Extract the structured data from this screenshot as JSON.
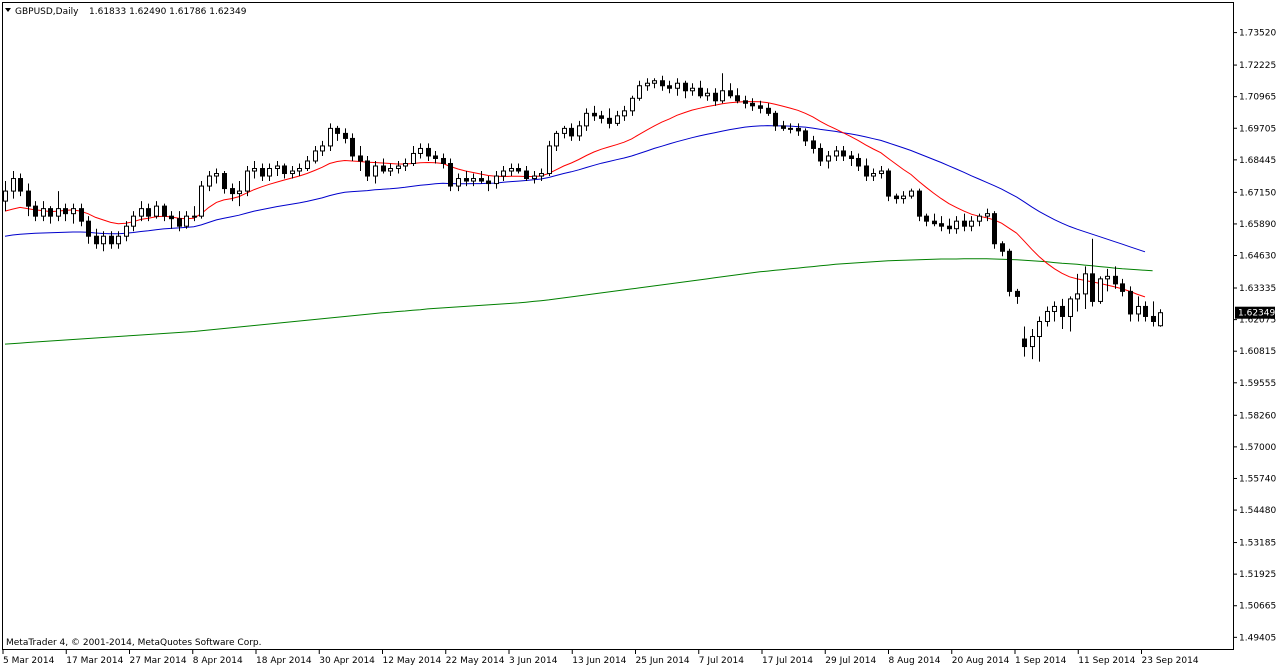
{
  "header": {
    "symbol_label": "GBPUSD,Daily",
    "ohlc_label": "1.61833 1.62490 1.61786 1.62349"
  },
  "footer": {
    "copyright": "MetaTrader 4, © 2001-2014, MetaQuotes Software Corp."
  },
  "chart_data": {
    "type": "candlestick",
    "ylim": [
      1.489,
      1.747
    ],
    "y_ticks": [
      "1.73520",
      "1.72225",
      "1.70965",
      "1.69705",
      "1.68445",
      "1.67150",
      "1.65890",
      "1.64630",
      "1.63335",
      "1.62075",
      "1.60815",
      "1.59555",
      "1.58260",
      "1.57000",
      "1.55740",
      "1.54480",
      "1.53185",
      "1.51925",
      "1.50665",
      "1.49405"
    ],
    "x_labels": [
      "5 Mar 2014",
      "17 Mar 2014",
      "27 Mar 2014",
      "8 Apr 2014",
      "18 Apr 2014",
      "30 Apr 2014",
      "12 May 2014",
      "22 May 2014",
      "3 Jun 2014",
      "13 Jun 2014",
      "25 Jun 2014",
      "7 Jul 2014",
      "17 Jul 2014",
      "29 Jul 2014",
      "8 Aug 2014",
      "20 Aug 2014",
      "1 Sep 2014",
      "11 Sep 2014",
      "23 Sep 2014"
    ],
    "current_price": "1.62349",
    "colors": {
      "ma_fast": "#ff0000",
      "ma_mid": "#0000cc",
      "ma_slow": "#008000",
      "candle_bull": "#ffffff",
      "candle_bear": "#000000"
    },
    "candles": [
      [
        1.668,
        1.676,
        1.664,
        1.672
      ],
      [
        1.672,
        1.68,
        1.669,
        1.677
      ],
      [
        1.677,
        1.679,
        1.67,
        1.672
      ],
      [
        1.672,
        1.675,
        1.662,
        1.666
      ],
      [
        1.666,
        1.668,
        1.66,
        1.662
      ],
      [
        1.662,
        1.668,
        1.66,
        1.665
      ],
      [
        1.665,
        1.666,
        1.659,
        1.662
      ],
      [
        1.662,
        1.672,
        1.66,
        1.665
      ],
      [
        1.665,
        1.667,
        1.66,
        1.663
      ],
      [
        1.663,
        1.667,
        1.659,
        1.665
      ],
      [
        1.665,
        1.667,
        1.658,
        1.66
      ],
      [
        1.66,
        1.662,
        1.651,
        1.654
      ],
      [
        1.654,
        1.657,
        1.649,
        1.651
      ],
      [
        1.651,
        1.656,
        1.648,
        1.654
      ],
      [
        1.654,
        1.656,
        1.649,
        1.651
      ],
      [
        1.651,
        1.656,
        1.649,
        1.654
      ],
      [
        1.654,
        1.66,
        1.652,
        1.658
      ],
      [
        1.658,
        1.664,
        1.656,
        1.662
      ],
      [
        1.662,
        1.668,
        1.66,
        1.665
      ],
      [
        1.665,
        1.667,
        1.66,
        1.662
      ],
      [
        1.662,
        1.668,
        1.661,
        1.666
      ],
      [
        1.666,
        1.667,
        1.66,
        1.662
      ],
      [
        1.662,
        1.664,
        1.657,
        1.661
      ],
      [
        1.661,
        1.664,
        1.656,
        1.658
      ],
      [
        1.658,
        1.664,
        1.657,
        1.662
      ],
      [
        1.662,
        1.666,
        1.66,
        1.662
      ],
      [
        1.662,
        1.676,
        1.661,
        1.674
      ],
      [
        1.674,
        1.68,
        1.672,
        1.678
      ],
      [
        1.678,
        1.681,
        1.675,
        1.679
      ],
      [
        1.679,
        1.68,
        1.671,
        1.673
      ],
      [
        1.673,
        1.675,
        1.668,
        1.671
      ],
      [
        1.671,
        1.676,
        1.666,
        1.672
      ],
      [
        1.672,
        1.682,
        1.67,
        1.68
      ],
      [
        1.68,
        1.684,
        1.677,
        1.681
      ],
      [
        1.681,
        1.683,
        1.676,
        1.678
      ],
      [
        1.678,
        1.683,
        1.676,
        1.681
      ],
      [
        1.681,
        1.684,
        1.678,
        1.682
      ],
      [
        1.682,
        1.683,
        1.677,
        1.679
      ],
      [
        1.679,
        1.682,
        1.677,
        1.68
      ],
      [
        1.68,
        1.683,
        1.678,
        1.681
      ],
      [
        1.681,
        1.686,
        1.68,
        1.684
      ],
      [
        1.684,
        1.69,
        1.683,
        1.688
      ],
      [
        1.688,
        1.692,
        1.686,
        1.69
      ],
      [
        1.69,
        1.699,
        1.688,
        1.697
      ],
      [
        1.697,
        1.698,
        1.692,
        1.695
      ],
      [
        1.695,
        1.697,
        1.691,
        1.693
      ],
      [
        1.693,
        1.695,
        1.684,
        1.686
      ],
      [
        1.686,
        1.69,
        1.68,
        1.684
      ],
      [
        1.684,
        1.686,
        1.676,
        1.678
      ],
      [
        1.678,
        1.684,
        1.675,
        1.682
      ],
      [
        1.682,
        1.685,
        1.679,
        1.68
      ],
      [
        1.68,
        1.683,
        1.678,
        1.681
      ],
      [
        1.681,
        1.684,
        1.679,
        1.682
      ],
      [
        1.682,
        1.685,
        1.68,
        1.683
      ],
      [
        1.683,
        1.69,
        1.682,
        1.687
      ],
      [
        1.687,
        1.691,
        1.685,
        1.689
      ],
      [
        1.689,
        1.691,
        1.684,
        1.686
      ],
      [
        1.686,
        1.688,
        1.683,
        1.685
      ],
      [
        1.685,
        1.687,
        1.681,
        1.683
      ],
      [
        1.683,
        1.685,
        1.672,
        1.674
      ],
      [
        1.674,
        1.679,
        1.672,
        1.677
      ],
      [
        1.677,
        1.68,
        1.674,
        1.676
      ],
      [
        1.676,
        1.679,
        1.674,
        1.677
      ],
      [
        1.677,
        1.68,
        1.675,
        1.676
      ],
      [
        1.676,
        1.678,
        1.672,
        1.675
      ],
      [
        1.675,
        1.68,
        1.673,
        1.678
      ],
      [
        1.678,
        1.682,
        1.676,
        1.68
      ],
      [
        1.68,
        1.683,
        1.678,
        1.681
      ],
      [
        1.681,
        1.683,
        1.679,
        1.68
      ],
      [
        1.68,
        1.682,
        1.676,
        1.677
      ],
      [
        1.677,
        1.68,
        1.675,
        1.678
      ],
      [
        1.678,
        1.681,
        1.676,
        1.679
      ],
      [
        1.679,
        1.692,
        1.678,
        1.69
      ],
      [
        1.69,
        1.696,
        1.688,
        1.695
      ],
      [
        1.695,
        1.698,
        1.693,
        1.697
      ],
      [
        1.697,
        1.699,
        1.692,
        1.694
      ],
      [
        1.694,
        1.7,
        1.692,
        1.698
      ],
      [
        1.698,
        1.705,
        1.696,
        1.703
      ],
      [
        1.703,
        1.706,
        1.7,
        1.702
      ],
      [
        1.702,
        1.704,
        1.699,
        1.701
      ],
      [
        1.701,
        1.705,
        1.697,
        1.699
      ],
      [
        1.699,
        1.704,
        1.698,
        1.702
      ],
      [
        1.702,
        1.706,
        1.7,
        1.704
      ],
      [
        1.704,
        1.71,
        1.702,
        1.709
      ],
      [
        1.709,
        1.716,
        1.708,
        1.714
      ],
      [
        1.714,
        1.717,
        1.712,
        1.715
      ],
      [
        1.715,
        1.717,
        1.713,
        1.716
      ],
      [
        1.716,
        1.718,
        1.712,
        1.714
      ],
      [
        1.714,
        1.716,
        1.711,
        1.713
      ],
      [
        1.713,
        1.717,
        1.71,
        1.715
      ],
      [
        1.715,
        1.716,
        1.709,
        1.712
      ],
      [
        1.712,
        1.715,
        1.71,
        1.713
      ],
      [
        1.713,
        1.716,
        1.709,
        1.71
      ],
      [
        1.71,
        1.713,
        1.708,
        1.711
      ],
      [
        1.711,
        1.713,
        1.706,
        1.708
      ],
      [
        1.708,
        1.719,
        1.707,
        1.712
      ],
      [
        1.712,
        1.715,
        1.709,
        1.71
      ],
      [
        1.71,
        1.713,
        1.707,
        1.708
      ],
      [
        1.708,
        1.71,
        1.705,
        1.707
      ],
      [
        1.707,
        1.709,
        1.704,
        1.706
      ],
      [
        1.706,
        1.708,
        1.703,
        1.705
      ],
      [
        1.705,
        1.707,
        1.702,
        1.703
      ],
      [
        1.703,
        1.704,
        1.696,
        1.698
      ],
      [
        1.698,
        1.7,
        1.696,
        1.697
      ],
      [
        1.697,
        1.699,
        1.695,
        1.697
      ],
      [
        1.697,
        1.699,
        1.694,
        1.696
      ],
      [
        1.696,
        1.697,
        1.69,
        1.692
      ],
      [
        1.692,
        1.694,
        1.687,
        1.689
      ],
      [
        1.689,
        1.691,
        1.682,
        1.684
      ],
      [
        1.684,
        1.688,
        1.681,
        1.686
      ],
      [
        1.686,
        1.69,
        1.684,
        1.688
      ],
      [
        1.688,
        1.69,
        1.684,
        1.686
      ],
      [
        1.686,
        1.688,
        1.682,
        1.685
      ],
      [
        1.685,
        1.687,
        1.68,
        1.682
      ],
      [
        1.682,
        1.685,
        1.676,
        1.678
      ],
      [
        1.678,
        1.681,
        1.676,
        1.679
      ],
      [
        1.679,
        1.682,
        1.677,
        1.68
      ],
      [
        1.68,
        1.681,
        1.668,
        1.67
      ],
      [
        1.67,
        1.671,
        1.667,
        1.669
      ],
      [
        1.669,
        1.672,
        1.667,
        1.67
      ],
      [
        1.67,
        1.673,
        1.669,
        1.672
      ],
      [
        1.672,
        1.673,
        1.66,
        1.662
      ],
      [
        1.662,
        1.663,
        1.658,
        1.66
      ],
      [
        1.66,
        1.663,
        1.658,
        1.659
      ],
      [
        1.659,
        1.662,
        1.656,
        1.658
      ],
      [
        1.658,
        1.661,
        1.655,
        1.657
      ],
      [
        1.657,
        1.662,
        1.655,
        1.66
      ],
      [
        1.66,
        1.663,
        1.656,
        1.658
      ],
      [
        1.658,
        1.662,
        1.656,
        1.66
      ],
      [
        1.66,
        1.663,
        1.658,
        1.662
      ],
      [
        1.662,
        1.665,
        1.66,
        1.663
      ],
      [
        1.663,
        1.664,
        1.649,
        1.651
      ],
      [
        1.651,
        1.652,
        1.646,
        1.648
      ],
      [
        1.648,
        1.649,
        1.63,
        1.632
      ],
      [
        1.632,
        1.633,
        1.627,
        1.63
      ],
      [
        1.613,
        1.618,
        1.606,
        1.61
      ],
      [
        1.61,
        1.617,
        1.605,
        1.614
      ],
      [
        1.614,
        1.622,
        1.604,
        1.62
      ],
      [
        1.62,
        1.626,
        1.618,
        1.624
      ],
      [
        1.624,
        1.628,
        1.62,
        1.626
      ],
      [
        1.626,
        1.629,
        1.617,
        1.622
      ],
      [
        1.622,
        1.63,
        1.616,
        1.629
      ],
      [
        1.629,
        1.639,
        1.624,
        1.631
      ],
      [
        1.631,
        1.642,
        1.625,
        1.639
      ],
      [
        1.639,
        1.653,
        1.626,
        1.628
      ],
      [
        1.628,
        1.638,
        1.627,
        1.637
      ],
      [
        1.637,
        1.641,
        1.632,
        1.638
      ],
      [
        1.638,
        1.642,
        1.633,
        1.635
      ],
      [
        1.635,
        1.637,
        1.63,
        1.632
      ],
      [
        1.632,
        1.634,
        1.62,
        1.623
      ],
      [
        1.623,
        1.63,
        1.62,
        1.626
      ],
      [
        1.626,
        1.628,
        1.62,
        1.622
      ],
      [
        1.622,
        1.628,
        1.618,
        1.62
      ],
      [
        1.6183,
        1.6249,
        1.6179,
        1.6235
      ]
    ],
    "ma_fast": [
      1.664,
      1.6648,
      1.6655,
      1.665,
      1.6645,
      1.6642,
      1.6638,
      1.664,
      1.6643,
      1.6645,
      1.664,
      1.663,
      1.6615,
      1.6605,
      1.6595,
      1.659,
      1.6592,
      1.6598,
      1.6607,
      1.6612,
      1.6618,
      1.662,
      1.6617,
      1.6612,
      1.661,
      1.6612,
      1.663,
      1.6655,
      1.6675,
      1.6685,
      1.669,
      1.6698,
      1.6712,
      1.6726,
      1.6737,
      1.6747,
      1.6756,
      1.6764,
      1.6772,
      1.678,
      1.679,
      1.6802,
      1.6815,
      1.683,
      1.6838,
      1.6842,
      1.684,
      1.6838,
      1.6835,
      1.6834,
      1.6832,
      1.683,
      1.6828,
      1.6828,
      1.683,
      1.6833,
      1.6834,
      1.6833,
      1.683,
      1.6818,
      1.6808,
      1.68,
      1.6794,
      1.6788,
      1.6782,
      1.6779,
      1.6778,
      1.6779,
      1.6779,
      1.6778,
      1.6778,
      1.678,
      1.679,
      1.6805,
      1.682,
      1.6832,
      1.6846,
      1.6862,
      1.6876,
      1.6887,
      1.6896,
      1.6905,
      1.6915,
      1.6928,
      1.6946,
      1.6963,
      1.698,
      1.6995,
      1.7008,
      1.7022,
      1.7033,
      1.7043,
      1.705,
      1.7057,
      1.7062,
      1.7068,
      1.7072,
      1.7075,
      1.7077,
      1.7077,
      1.7076,
      1.7073,
      1.7066,
      1.7059,
      1.7051,
      1.7042,
      1.703,
      1.7016,
      1.6998,
      1.6982,
      1.6968,
      1.6953,
      1.6938,
      1.6922,
      1.6904,
      1.6888,
      1.6873,
      1.685,
      1.6828,
      1.6806,
      1.6786,
      1.676,
      1.6735,
      1.6712,
      1.669,
      1.667,
      1.6655,
      1.664,
      1.6628,
      1.662,
      1.6614,
      1.6605,
      1.6592,
      1.6572,
      1.6552,
      1.652,
      1.6488,
      1.6458,
      1.6432,
      1.641,
      1.6392,
      1.6378,
      1.637,
      1.6364,
      1.6358,
      1.6352,
      1.6345,
      1.6338,
      1.633,
      1.632,
      1.6308,
      1.6298
    ],
    "ma_mid": [
      1.654,
      1.6545,
      1.6548,
      1.655,
      1.6552,
      1.6553,
      1.6554,
      1.6555,
      1.6556,
      1.6557,
      1.6557,
      1.6556,
      1.6553,
      1.6551,
      1.655,
      1.655,
      1.6552,
      1.6555,
      1.6559,
      1.6562,
      1.6566,
      1.6569,
      1.6571,
      1.6573,
      1.6575,
      1.6578,
      1.6585,
      1.6595,
      1.6605,
      1.6612,
      1.6618,
      1.6624,
      1.6632,
      1.664,
      1.6646,
      1.6652,
      1.6658,
      1.6663,
      1.6668,
      1.6673,
      1.6679,
      1.6686,
      1.6693,
      1.6702,
      1.6709,
      1.6715,
      1.6718,
      1.672,
      1.6722,
      1.6725,
      1.6727,
      1.6729,
      1.6732,
      1.6735,
      1.6739,
      1.6743,
      1.6746,
      1.6749,
      1.6751,
      1.675,
      1.6749,
      1.6749,
      1.675,
      1.675,
      1.6751,
      1.6752,
      1.6755,
      1.6758,
      1.676,
      1.6762,
      1.6765,
      1.6768,
      1.6774,
      1.6782,
      1.679,
      1.6797,
      1.6805,
      1.6814,
      1.6823,
      1.6831,
      1.6838,
      1.6845,
      1.6852,
      1.686,
      1.687,
      1.688,
      1.689,
      1.6899,
      1.6908,
      1.6917,
      1.6925,
      1.6933,
      1.694,
      1.6947,
      1.6953,
      1.6959,
      1.6965,
      1.697,
      1.6975,
      1.6978,
      1.698,
      1.6981,
      1.698,
      1.698,
      1.6979,
      1.6977,
      1.6975,
      1.6971,
      1.6966,
      1.6962,
      1.6958,
      1.6953,
      1.6948,
      1.6943,
      1.6936,
      1.6929,
      1.6922,
      1.6912,
      1.6902,
      1.6892,
      1.6882,
      1.687,
      1.6858,
      1.6846,
      1.6834,
      1.6821,
      1.6808,
      1.6795,
      1.6781,
      1.6768,
      1.6755,
      1.6742,
      1.6728,
      1.6712,
      1.6696,
      1.6677,
      1.6657,
      1.6638,
      1.6622,
      1.6606,
      1.6592,
      1.6579,
      1.6568,
      1.6558,
      1.6548,
      1.6538,
      1.6528,
      1.6518,
      1.6508,
      1.6498,
      1.6488,
      1.6478
    ],
    "ma_slow": [
      1.611,
      1.6112,
      1.6114,
      1.6116,
      1.6118,
      1.612,
      1.6122,
      1.6124,
      1.6126,
      1.6128,
      1.613,
      1.6132,
      1.6134,
      1.6136,
      1.6138,
      1.614,
      1.6142,
      1.6144,
      1.6146,
      1.6148,
      1.615,
      1.6152,
      1.6154,
      1.6156,
      1.6158,
      1.616,
      1.6163,
      1.6166,
      1.6169,
      1.6172,
      1.6175,
      1.6178,
      1.6181,
      1.6184,
      1.6187,
      1.619,
      1.6193,
      1.6196,
      1.6199,
      1.6202,
      1.6205,
      1.6208,
      1.6211,
      1.6214,
      1.6217,
      1.622,
      1.6223,
      1.6226,
      1.6229,
      1.6232,
      1.6235,
      1.6237,
      1.624,
      1.6242,
      1.6245,
      1.6247,
      1.625,
      1.6252,
      1.6254,
      1.6256,
      1.6258,
      1.626,
      1.6262,
      1.6264,
      1.6266,
      1.6268,
      1.627,
      1.6272,
      1.6274,
      1.6277,
      1.628,
      1.6283,
      1.6286,
      1.629,
      1.6294,
      1.6298,
      1.6302,
      1.6306,
      1.631,
      1.6314,
      1.6318,
      1.6322,
      1.6326,
      1.633,
      1.6334,
      1.6338,
      1.6342,
      1.6346,
      1.635,
      1.6354,
      1.6358,
      1.6362,
      1.6366,
      1.637,
      1.6374,
      1.6378,
      1.6382,
      1.6386,
      1.639,
      1.6394,
      1.6398,
      1.6401,
      1.6404,
      1.6407,
      1.641,
      1.6413,
      1.6416,
      1.6419,
      1.6422,
      1.6425,
      1.6428,
      1.643,
      1.6432,
      1.6434,
      1.6436,
      1.6438,
      1.644,
      1.6442,
      1.6443,
      1.6444,
      1.6445,
      1.6446,
      1.6447,
      1.6448,
      1.6449,
      1.6449,
      1.6449,
      1.645,
      1.645,
      1.645,
      1.645,
      1.6449,
      1.6448,
      1.6447,
      1.6446,
      1.6444,
      1.6442,
      1.644,
      1.6438,
      1.6435,
      1.6432,
      1.643,
      1.6428,
      1.6425,
      1.6422,
      1.6419,
      1.6416,
      1.6413,
      1.641,
      1.6408,
      1.6406,
      1.6404,
      1.6402
    ]
  }
}
